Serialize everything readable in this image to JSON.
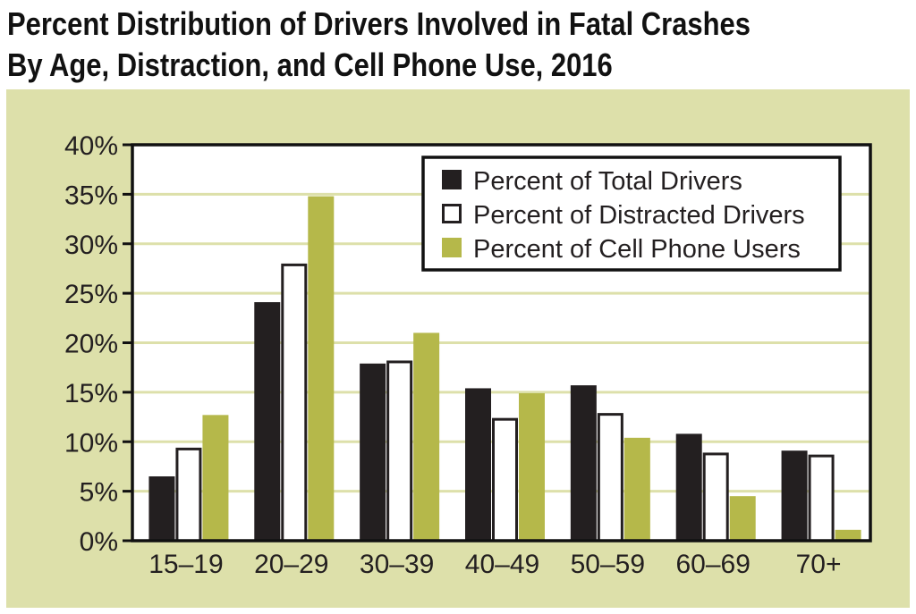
{
  "title": {
    "line1": "Percent Distribution of Drivers Involved in Fatal Crashes",
    "line2": "By Age, Distraction, and Cell Phone Use, 2016"
  },
  "colors": {
    "panel_background": "#dde0aa",
    "plot_background": "#ffffff",
    "gridline": "#dde0aa",
    "total_drivers": "#231f20",
    "distracted_drivers": "#ffffff",
    "cell_phone_users": "#b5b84a",
    "axis": "#111111",
    "text": "#231f20"
  },
  "chart_data": {
    "type": "bar",
    "title": "Percent Distribution of Drivers Involved in Fatal Crashes By Age, Distraction, and Cell Phone Use, 2016",
    "xlabel": "",
    "ylabel": "",
    "categories": [
      "15–19",
      "20–29",
      "30–39",
      "40–49",
      "50–59",
      "60–69",
      "70+"
    ],
    "ylim": [
      0,
      40
    ],
    "yticks": [
      0,
      5,
      10,
      15,
      20,
      25,
      30,
      35,
      40
    ],
    "ytick_labels": [
      "0%",
      "5%",
      "10%",
      "15%",
      "20%",
      "25%",
      "30%",
      "35%",
      "40%"
    ],
    "grid": true,
    "legend_position": "top-right",
    "series": [
      {
        "name": "Percent of Total Drivers",
        "color_key": "total_drivers",
        "values": [
          6.5,
          24.1,
          17.9,
          15.4,
          15.7,
          10.8,
          9.1
        ]
      },
      {
        "name": "Percent of Distracted Drivers",
        "color_key": "distracted_drivers",
        "values": [
          9.4,
          28.0,
          18.2,
          12.4,
          12.9,
          8.9,
          8.7
        ]
      },
      {
        "name": "Percent of Cell Phone Users",
        "color_key": "cell_phone_users",
        "values": [
          12.7,
          34.8,
          21.0,
          14.9,
          10.4,
          4.5,
          1.1
        ]
      }
    ]
  }
}
